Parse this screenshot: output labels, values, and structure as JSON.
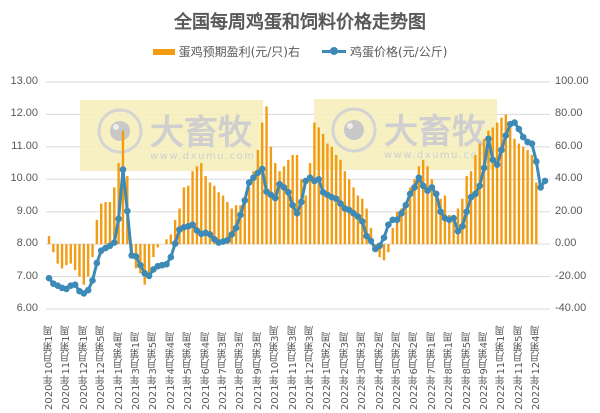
{
  "title": "全国每周鸡蛋和饲料价格走势图",
  "legend": {
    "bar_label": "蛋鸡预期盈利(元/只)右",
    "line_label": "鸡蛋价格(元/公斤)"
  },
  "watermark": {
    "brand": "大畜牧",
    "url": "www.dxumu.com"
  },
  "colors": {
    "bar": "#f39c12",
    "line": "#3e8ab7",
    "grid": "#d9d9d9",
    "watermark_bg": "#f5edb8"
  },
  "axes": {
    "left_ticks": [
      "13.00",
      "12.00",
      "11.00",
      "10.00",
      "9.00",
      "8.00",
      "7.00",
      "6.00"
    ],
    "right_ticks": [
      "100.00",
      "80.00",
      "60.00",
      "40.00",
      "20.00",
      "0.00",
      "-20.00",
      "-40.00"
    ]
  },
  "chart_data": {
    "type": "bar+line",
    "title": "全国每周鸡蛋和饲料价格走势图",
    "xlabel": "",
    "ylabel_left": "鸡蛋价格(元/公斤)",
    "ylabel_right": "蛋鸡预期盈利(元/只)",
    "ylim_left": [
      6,
      13
    ],
    "ylim_right": [
      -40,
      100
    ],
    "grid": true,
    "legend_position": "top",
    "x_tick_labels": [
      "2020年10月第1周",
      "2020年11月第1周",
      "2020年12月第1周",
      "2020年12月第5周",
      "2021年1月第4周",
      "2021年3月第1周",
      "2021年3月第5周",
      "2021年4月第4周",
      "2021年5月第4周",
      "2021年6月第4周",
      "2021年7月第3周",
      "2021年8月第3周",
      "2021年9月第3周",
      "2021年10月第3周",
      "2021年11月第3周",
      "2021年12月第3周",
      "2022年1月第2周",
      "2022年2月第3周",
      "2022年3月第3周",
      "2022年4月第2周",
      "2022年5月第2周",
      "2022年6月第2周",
      "2022年7月第1周",
      "2022年8月第1周",
      "2022年8月第5周",
      "2022年9月第4周",
      "2022年11月第1周",
      "2022年11月第5周",
      "2022年12月第4周"
    ],
    "series": [
      {
        "name": "蛋鸡预期盈利(元/只)右",
        "axis": "right",
        "type": "bar",
        "values": [
          5,
          -5,
          -12,
          -15,
          -13,
          -12,
          -16,
          -20,
          -25,
          -20,
          -8,
          15,
          25,
          26,
          26,
          35,
          50,
          70,
          42,
          -8,
          -15,
          -18,
          -25,
          -18,
          -8,
          -2,
          0,
          3,
          6,
          15,
          22,
          35,
          36,
          45,
          48,
          50,
          42,
          38,
          36,
          32,
          30,
          26,
          22,
          24,
          24,
          28,
          35,
          45,
          58,
          75,
          85,
          60,
          50,
          45,
          48,
          52,
          55,
          55,
          40,
          30,
          50,
          75,
          72,
          68,
          62,
          60,
          55,
          52,
          45,
          40,
          35,
          30,
          28,
          22,
          10,
          -3,
          -8,
          -10,
          -5,
          10,
          20,
          22,
          25,
          35,
          40,
          48,
          52,
          48,
          40,
          32,
          28,
          30,
          18,
          15,
          22,
          28,
          42,
          45,
          55,
          62,
          65,
          70,
          72,
          75,
          78,
          80,
          72,
          65,
          62,
          60,
          58,
          55,
          38
        ],
        "_note": "approximate estimates read off gridlines"
      },
      {
        "name": "鸡蛋价格(元/公斤)",
        "axis": "left",
        "type": "line",
        "values": [
          6.95,
          6.78,
          6.72,
          6.65,
          6.62,
          6.72,
          6.75,
          6.55,
          6.48,
          6.58,
          6.88,
          7.42,
          7.8,
          7.88,
          7.95,
          8.05,
          8.78,
          10.3,
          9.02,
          7.65,
          7.62,
          7.35,
          7.1,
          7.02,
          7.22,
          7.32,
          7.35,
          7.38,
          7.6,
          8.02,
          8.45,
          8.52,
          8.55,
          8.6,
          8.42,
          8.32,
          8.35,
          8.3,
          8.15,
          8.05,
          8.08,
          8.12,
          8.3,
          8.5,
          8.9,
          9.35,
          9.9,
          10.05,
          10.2,
          10.32,
          9.62,
          9.52,
          9.42,
          9.85,
          9.75,
          9.6,
          9.2,
          8.95,
          9.3,
          9.95,
          10.05,
          9.95,
          10.0,
          9.6,
          9.52,
          9.45,
          9.4,
          9.25,
          9.1,
          9.05,
          8.95,
          8.85,
          8.7,
          8.25,
          8.1,
          7.85,
          7.95,
          8.2,
          8.6,
          8.75,
          8.75,
          8.95,
          9.2,
          9.55,
          9.75,
          10.05,
          9.8,
          9.65,
          9.75,
          9.55,
          9.0,
          8.8,
          8.75,
          8.8,
          8.4,
          8.55,
          9.0,
          9.45,
          9.55,
          9.8,
          10.35,
          11.25,
          10.6,
          10.45,
          10.9,
          11.35,
          11.7,
          11.75,
          11.55,
          11.3,
          11.15,
          11.1,
          10.55,
          9.75,
          9.95
        ]
      }
    ]
  }
}
